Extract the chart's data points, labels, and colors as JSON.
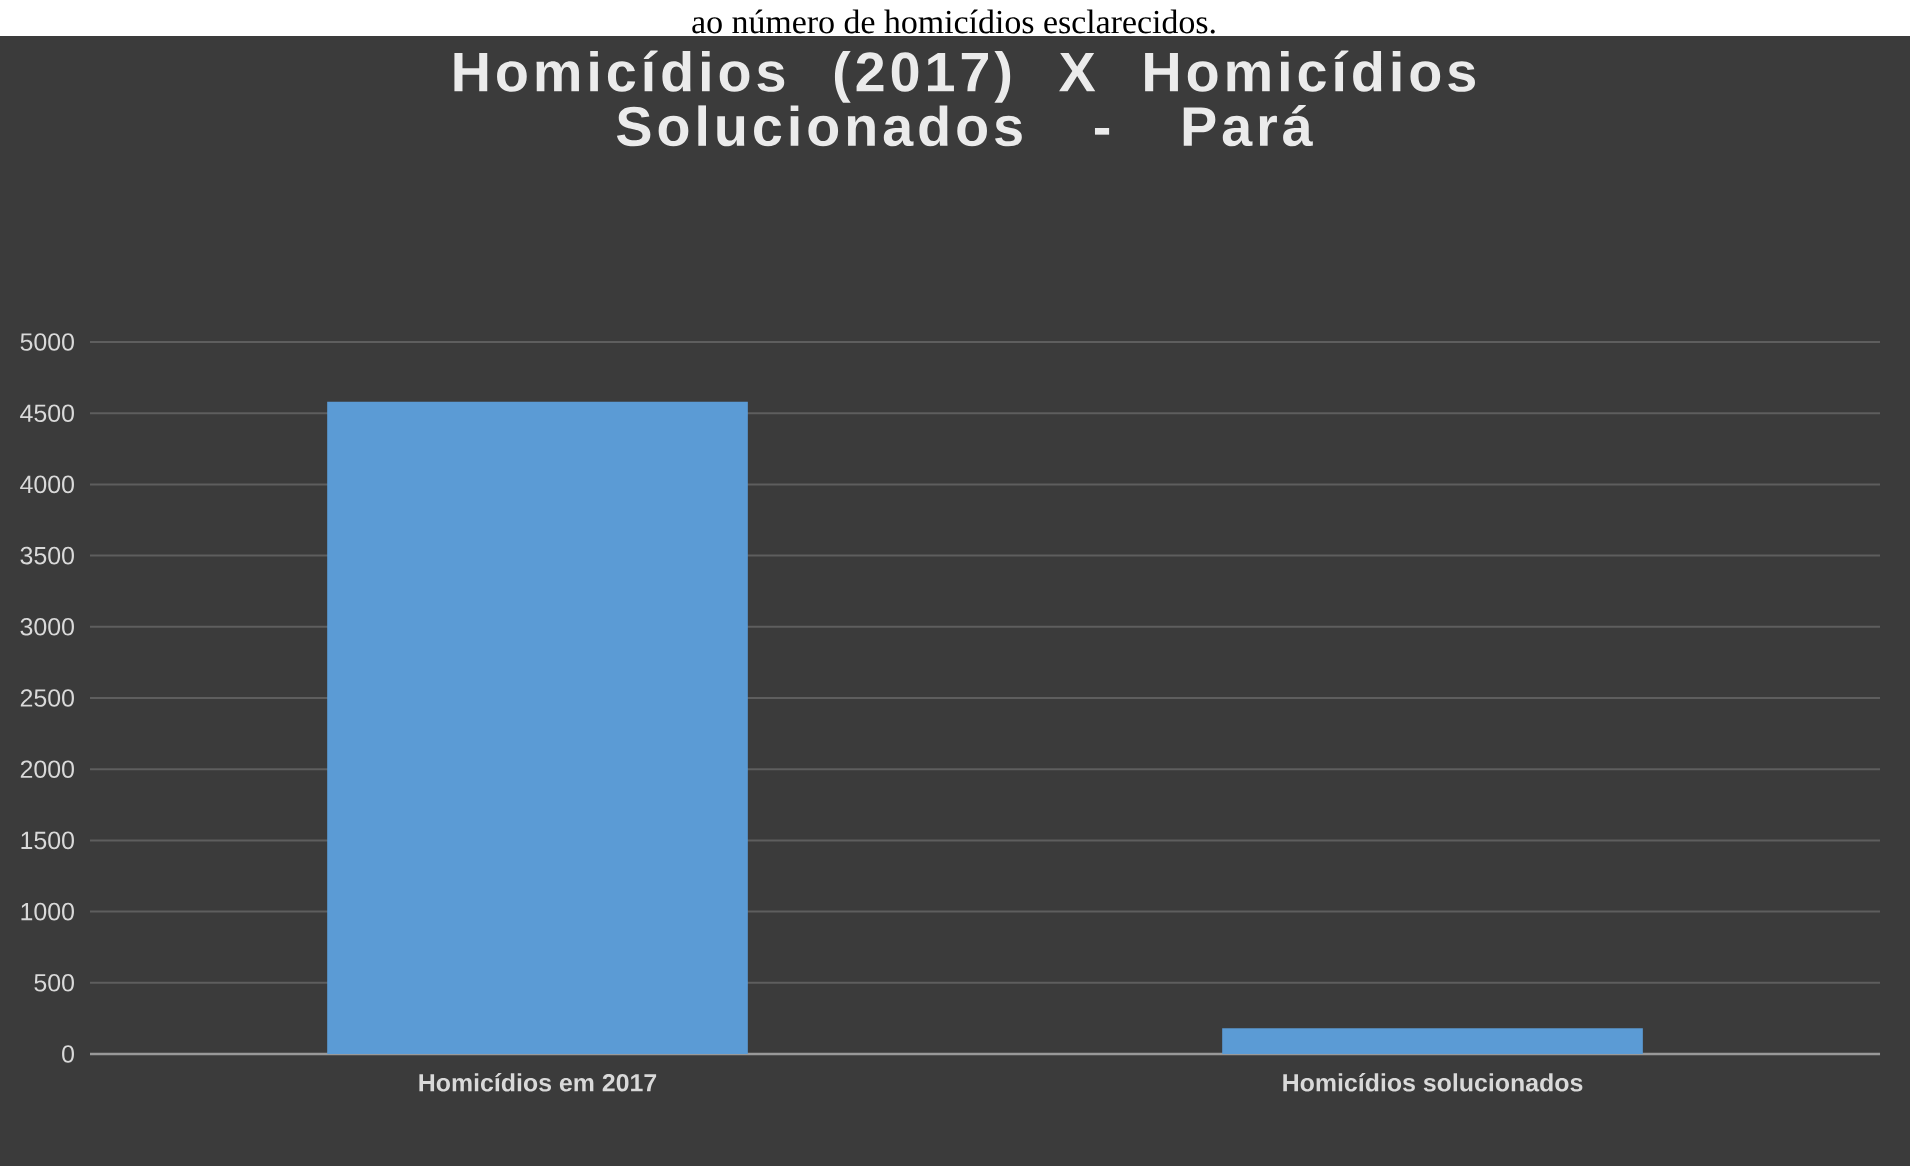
{
  "chart_data": {
    "type": "bar",
    "title": "Homicídios (2017) X Homicídios Solucionados - Pará",
    "annotations": [
      "ao número de homicídios esclarecidos."
    ],
    "categories": [
      "Homicídios em 2017",
      "Homicídios solucionados"
    ],
    "values": [
      4580,
      180
    ],
    "color": "#5b9bd5",
    "ylim": [
      0,
      5000
    ],
    "yticks": [
      0,
      500,
      1000,
      1500,
      2000,
      2500,
      3000,
      3500,
      4000,
      4500,
      5000
    ],
    "grid": "y"
  }
}
